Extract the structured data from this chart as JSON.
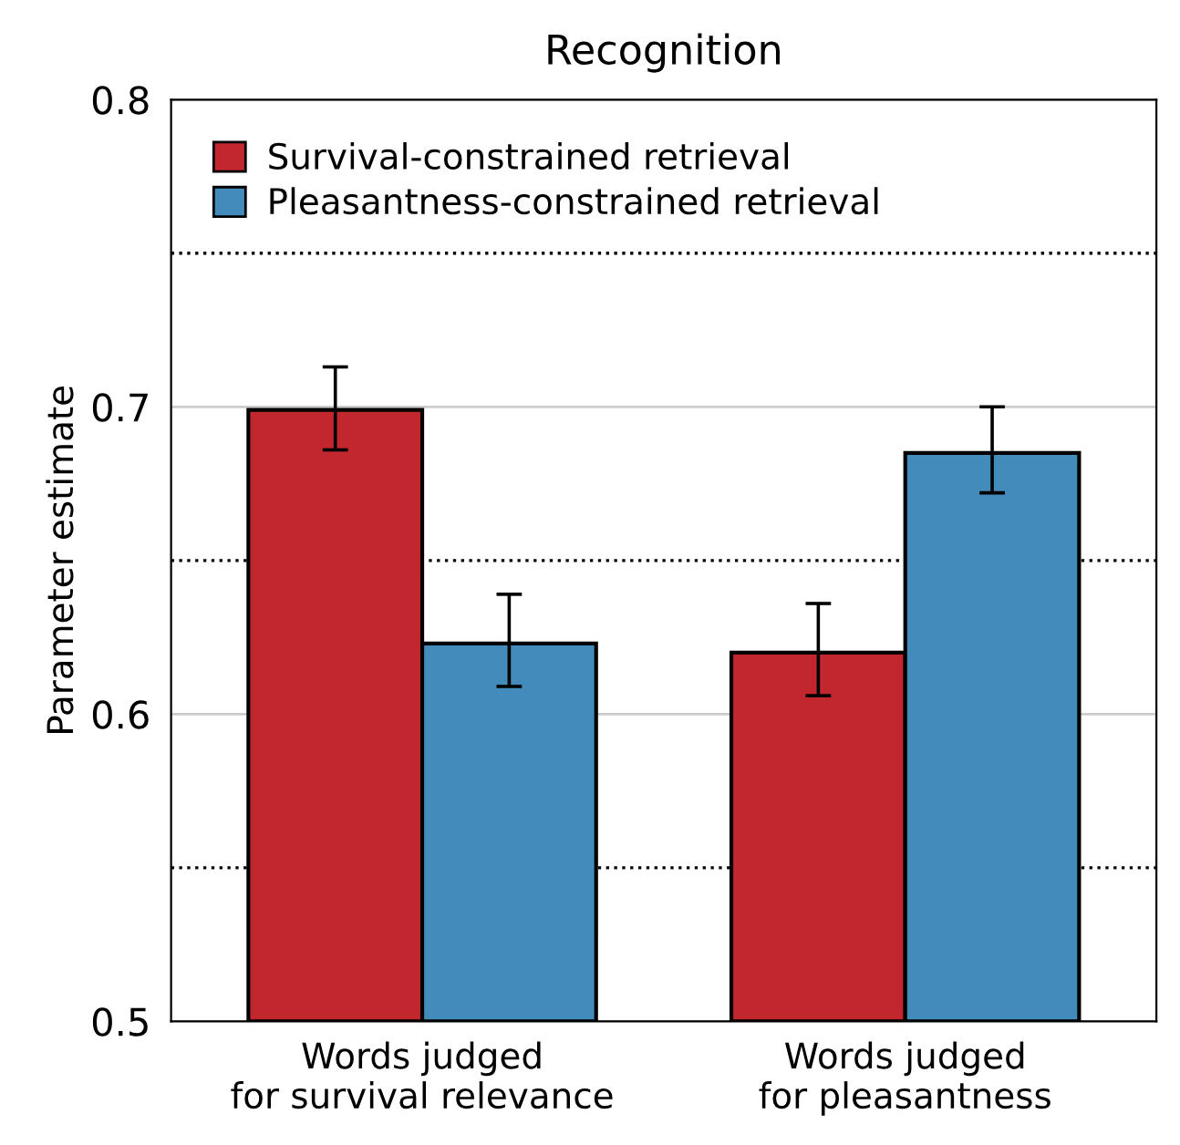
{
  "chart_data": {
    "type": "bar",
    "title": "Recognition",
    "ylabel": "Parameter estimate",
    "categories": [
      "Words judged\nfor survival relevance",
      "Words judged\nfor pleasantness"
    ],
    "series": [
      {
        "name": "Survival-constrained retrieval",
        "color": "#c1272d",
        "values": [
          0.699,
          0.62
        ],
        "errors": [
          [
            0.686,
            0.713
          ],
          [
            0.606,
            0.636
          ]
        ]
      },
      {
        "name": "Pleasantness-constrained retrieval",
        "color": "#428bba",
        "values": [
          0.623,
          0.685
        ],
        "errors": [
          [
            0.609,
            0.639
          ],
          [
            0.672,
            0.7
          ]
        ]
      }
    ],
    "ylim": [
      0.5,
      0.8
    ],
    "yticks": [
      0.5,
      0.6,
      0.7,
      0.8
    ],
    "grid": "y",
    "legend": "top left",
    "ref_lines": [
      {
        "axis": "y",
        "value": 0.55,
        "color": "#000000",
        "line_style": "dotted"
      },
      {
        "axis": "y",
        "value": 0.65,
        "color": "#000000",
        "line_style": "dotted"
      },
      {
        "axis": "y",
        "value": 0.75,
        "color": "#000000",
        "line_style": "dotted"
      }
    ]
  }
}
